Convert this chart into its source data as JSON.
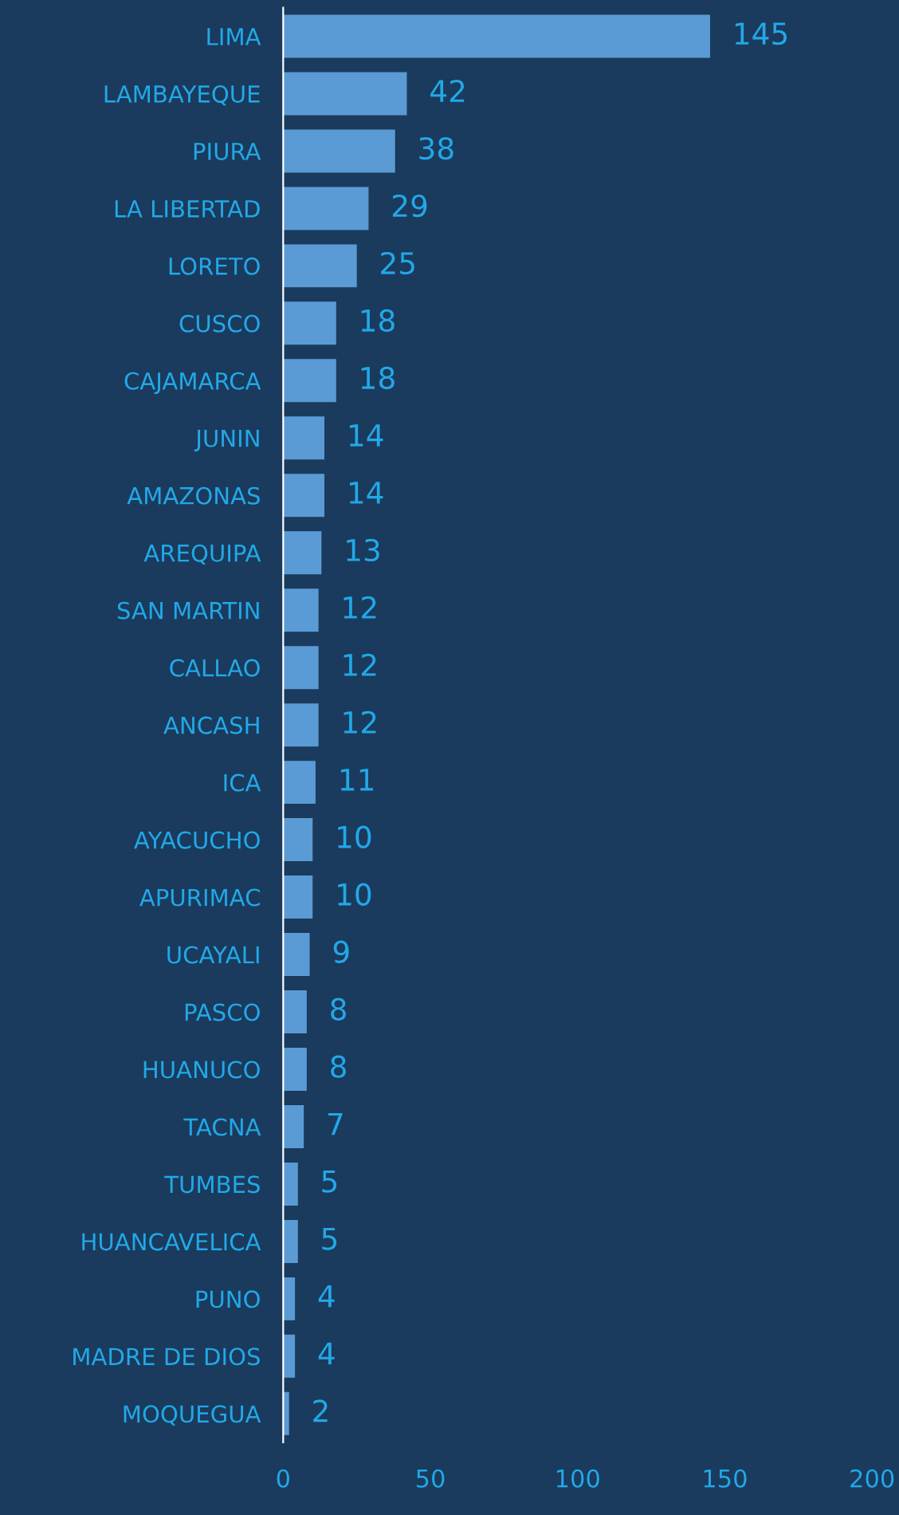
{
  "chart_data": {
    "type": "bar",
    "orientation": "horizontal",
    "categories": [
      "LIMA",
      "LAMBAYEQUE",
      "PIURA",
      "LA LIBERTAD",
      "LORETO",
      "CUSCO",
      "CAJAMARCA",
      "JUNIN",
      "AMAZONAS",
      "AREQUIPA",
      "SAN MARTIN",
      "CALLAO",
      "ANCASH",
      "ICA",
      "AYACUCHO",
      "APURIMAC",
      "UCAYALI",
      "PASCO",
      "HUANUCO",
      "TACNA",
      "TUMBES",
      "HUANCAVELICA",
      "PUNO",
      "MADRE DE DIOS",
      "MOQUEGUA"
    ],
    "values": [
      145,
      42,
      38,
      29,
      25,
      18,
      18,
      14,
      14,
      13,
      12,
      12,
      12,
      11,
      10,
      10,
      9,
      8,
      8,
      7,
      5,
      5,
      4,
      4,
      2
    ],
    "color": "#5b9bd5",
    "xlim": [
      0,
      200
    ],
    "xticks": [
      0,
      50,
      100,
      150,
      200
    ],
    "data_labels": true,
    "grid": false,
    "legend": false
  }
}
